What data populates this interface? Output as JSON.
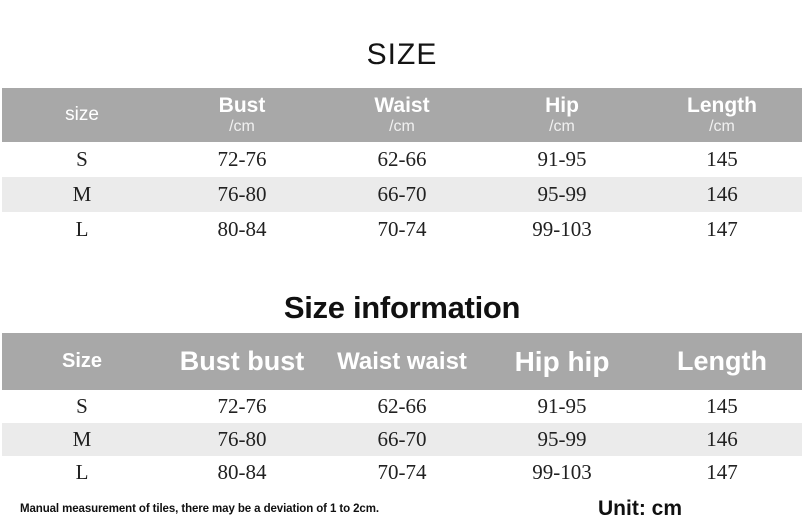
{
  "title": "SIZE",
  "section_title": "Size information",
  "table1": {
    "columns": [
      {
        "label": "size",
        "unit": ""
      },
      {
        "label": "Bust",
        "unit": "/cm"
      },
      {
        "label": "Waist",
        "unit": "/cm"
      },
      {
        "label": "Hip",
        "unit": "/cm"
      },
      {
        "label": "Length",
        "unit": "/cm"
      }
    ],
    "rows": [
      [
        "S",
        "72-76",
        "62-66",
        "91-95",
        "145"
      ],
      [
        "M",
        "76-80",
        "66-70",
        "95-99",
        "146"
      ],
      [
        "L",
        "80-84",
        "70-74",
        "99-103",
        "147"
      ]
    ]
  },
  "table2": {
    "columns": [
      {
        "label": "Size"
      },
      {
        "label": "Bust bust"
      },
      {
        "label": "Waist waist"
      },
      {
        "label": "Hip hip"
      },
      {
        "label": "Length"
      }
    ],
    "rows": [
      [
        "S",
        "72-76",
        "62-66",
        "91-95",
        "145"
      ],
      [
        "M",
        "76-80",
        "66-70",
        "95-99",
        "146"
      ],
      [
        "L",
        "80-84",
        "70-74",
        "99-103",
        "147"
      ]
    ]
  },
  "footer": {
    "note": "Manual measurement of tiles, there may be a deviation of 1 to 2cm.",
    "unit": "Unit: cm"
  },
  "colors": {
    "header_bg": "#a8a8a8",
    "row_stripe_bg": "#ebebeb",
    "row_bg": "#ffffff",
    "header_text": "#ffffff",
    "body_text": "#212121"
  }
}
